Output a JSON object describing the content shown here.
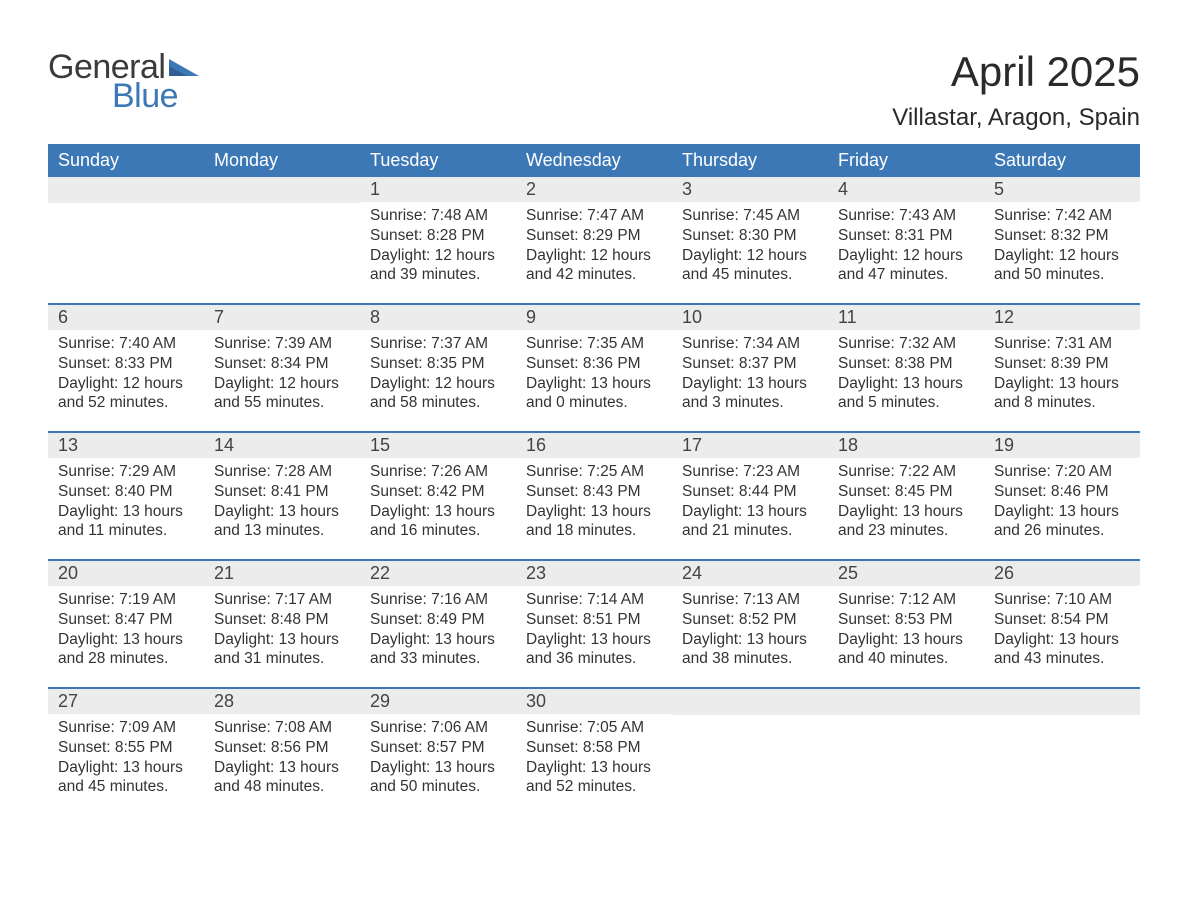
{
  "logo": {
    "text1": "General",
    "text2": "Blue",
    "text1_color": "#3a3a3a",
    "text2_color": "#3d78b6",
    "icon_color": "#3d78b6"
  },
  "title": "April 2025",
  "location": "Villastar, Aragon, Spain",
  "colors": {
    "header_bg": "#3d78b6",
    "header_text": "#ffffff",
    "daynum_bg": "#ececec",
    "body_text": "#333333",
    "week_border": "#3d78b6",
    "page_bg": "#ffffff"
  },
  "typography": {
    "month_title_size": 42,
    "location_size": 24,
    "weekday_size": 18,
    "daynum_size": 18,
    "body_size": 15.5,
    "logo_size": 34
  },
  "weekdays": [
    "Sunday",
    "Monday",
    "Tuesday",
    "Wednesday",
    "Thursday",
    "Friday",
    "Saturday"
  ],
  "weeks": [
    [
      {
        "empty": true
      },
      {
        "empty": true
      },
      {
        "n": "1",
        "sr": "Sunrise: 7:48 AM",
        "ss": "Sunset: 8:28 PM",
        "dl1": "Daylight: 12 hours",
        "dl2": "and 39 minutes."
      },
      {
        "n": "2",
        "sr": "Sunrise: 7:47 AM",
        "ss": "Sunset: 8:29 PM",
        "dl1": "Daylight: 12 hours",
        "dl2": "and 42 minutes."
      },
      {
        "n": "3",
        "sr": "Sunrise: 7:45 AM",
        "ss": "Sunset: 8:30 PM",
        "dl1": "Daylight: 12 hours",
        "dl2": "and 45 minutes."
      },
      {
        "n": "4",
        "sr": "Sunrise: 7:43 AM",
        "ss": "Sunset: 8:31 PM",
        "dl1": "Daylight: 12 hours",
        "dl2": "and 47 minutes."
      },
      {
        "n": "5",
        "sr": "Sunrise: 7:42 AM",
        "ss": "Sunset: 8:32 PM",
        "dl1": "Daylight: 12 hours",
        "dl2": "and 50 minutes."
      }
    ],
    [
      {
        "n": "6",
        "sr": "Sunrise: 7:40 AM",
        "ss": "Sunset: 8:33 PM",
        "dl1": "Daylight: 12 hours",
        "dl2": "and 52 minutes."
      },
      {
        "n": "7",
        "sr": "Sunrise: 7:39 AM",
        "ss": "Sunset: 8:34 PM",
        "dl1": "Daylight: 12 hours",
        "dl2": "and 55 minutes."
      },
      {
        "n": "8",
        "sr": "Sunrise: 7:37 AM",
        "ss": "Sunset: 8:35 PM",
        "dl1": "Daylight: 12 hours",
        "dl2": "and 58 minutes."
      },
      {
        "n": "9",
        "sr": "Sunrise: 7:35 AM",
        "ss": "Sunset: 8:36 PM",
        "dl1": "Daylight: 13 hours",
        "dl2": "and 0 minutes."
      },
      {
        "n": "10",
        "sr": "Sunrise: 7:34 AM",
        "ss": "Sunset: 8:37 PM",
        "dl1": "Daylight: 13 hours",
        "dl2": "and 3 minutes."
      },
      {
        "n": "11",
        "sr": "Sunrise: 7:32 AM",
        "ss": "Sunset: 8:38 PM",
        "dl1": "Daylight: 13 hours",
        "dl2": "and 5 minutes."
      },
      {
        "n": "12",
        "sr": "Sunrise: 7:31 AM",
        "ss": "Sunset: 8:39 PM",
        "dl1": "Daylight: 13 hours",
        "dl2": "and 8 minutes."
      }
    ],
    [
      {
        "n": "13",
        "sr": "Sunrise: 7:29 AM",
        "ss": "Sunset: 8:40 PM",
        "dl1": "Daylight: 13 hours",
        "dl2": "and 11 minutes."
      },
      {
        "n": "14",
        "sr": "Sunrise: 7:28 AM",
        "ss": "Sunset: 8:41 PM",
        "dl1": "Daylight: 13 hours",
        "dl2": "and 13 minutes."
      },
      {
        "n": "15",
        "sr": "Sunrise: 7:26 AM",
        "ss": "Sunset: 8:42 PM",
        "dl1": "Daylight: 13 hours",
        "dl2": "and 16 minutes."
      },
      {
        "n": "16",
        "sr": "Sunrise: 7:25 AM",
        "ss": "Sunset: 8:43 PM",
        "dl1": "Daylight: 13 hours",
        "dl2": "and 18 minutes."
      },
      {
        "n": "17",
        "sr": "Sunrise: 7:23 AM",
        "ss": "Sunset: 8:44 PM",
        "dl1": "Daylight: 13 hours",
        "dl2": "and 21 minutes."
      },
      {
        "n": "18",
        "sr": "Sunrise: 7:22 AM",
        "ss": "Sunset: 8:45 PM",
        "dl1": "Daylight: 13 hours",
        "dl2": "and 23 minutes."
      },
      {
        "n": "19",
        "sr": "Sunrise: 7:20 AM",
        "ss": "Sunset: 8:46 PM",
        "dl1": "Daylight: 13 hours",
        "dl2": "and 26 minutes."
      }
    ],
    [
      {
        "n": "20",
        "sr": "Sunrise: 7:19 AM",
        "ss": "Sunset: 8:47 PM",
        "dl1": "Daylight: 13 hours",
        "dl2": "and 28 minutes."
      },
      {
        "n": "21",
        "sr": "Sunrise: 7:17 AM",
        "ss": "Sunset: 8:48 PM",
        "dl1": "Daylight: 13 hours",
        "dl2": "and 31 minutes."
      },
      {
        "n": "22",
        "sr": "Sunrise: 7:16 AM",
        "ss": "Sunset: 8:49 PM",
        "dl1": "Daylight: 13 hours",
        "dl2": "and 33 minutes."
      },
      {
        "n": "23",
        "sr": "Sunrise: 7:14 AM",
        "ss": "Sunset: 8:51 PM",
        "dl1": "Daylight: 13 hours",
        "dl2": "and 36 minutes."
      },
      {
        "n": "24",
        "sr": "Sunrise: 7:13 AM",
        "ss": "Sunset: 8:52 PM",
        "dl1": "Daylight: 13 hours",
        "dl2": "and 38 minutes."
      },
      {
        "n": "25",
        "sr": "Sunrise: 7:12 AM",
        "ss": "Sunset: 8:53 PM",
        "dl1": "Daylight: 13 hours",
        "dl2": "and 40 minutes."
      },
      {
        "n": "26",
        "sr": "Sunrise: 7:10 AM",
        "ss": "Sunset: 8:54 PM",
        "dl1": "Daylight: 13 hours",
        "dl2": "and 43 minutes."
      }
    ],
    [
      {
        "n": "27",
        "sr": "Sunrise: 7:09 AM",
        "ss": "Sunset: 8:55 PM",
        "dl1": "Daylight: 13 hours",
        "dl2": "and 45 minutes."
      },
      {
        "n": "28",
        "sr": "Sunrise: 7:08 AM",
        "ss": "Sunset: 8:56 PM",
        "dl1": "Daylight: 13 hours",
        "dl2": "and 48 minutes."
      },
      {
        "n": "29",
        "sr": "Sunrise: 7:06 AM",
        "ss": "Sunset: 8:57 PM",
        "dl1": "Daylight: 13 hours",
        "dl2": "and 50 minutes."
      },
      {
        "n": "30",
        "sr": "Sunrise: 7:05 AM",
        "ss": "Sunset: 8:58 PM",
        "dl1": "Daylight: 13 hours",
        "dl2": "and 52 minutes."
      },
      {
        "empty": true
      },
      {
        "empty": true
      },
      {
        "empty": true
      }
    ]
  ]
}
